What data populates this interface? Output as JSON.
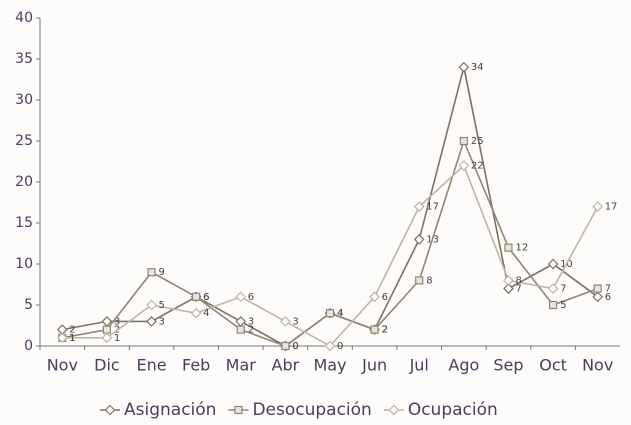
{
  "chart_data": {
    "type": "line",
    "categories": [
      "Nov",
      "Dic",
      "Ene",
      "Feb",
      "Mar",
      "Abr",
      "May",
      "Jun",
      "Jul",
      "Ago",
      "Sep",
      "Oct",
      "Nov"
    ],
    "series": [
      {
        "name": "Asignación",
        "color": "#7a7264",
        "marker": "diamond",
        "values": [
          2,
          3,
          3,
          6,
          3,
          0,
          4,
          2,
          13,
          34,
          7,
          10,
          6
        ]
      },
      {
        "name": "Desocupación",
        "color": "#8e8676",
        "marker": "square",
        "values": [
          1,
          2,
          9,
          6,
          2,
          0,
          4,
          2,
          8,
          25,
          12,
          5,
          7
        ]
      },
      {
        "name": "Ocupación",
        "color": "#bdb5a5",
        "marker": "diamond",
        "values": [
          1,
          1,
          5,
          4,
          6,
          3,
          0,
          6,
          17,
          22,
          8,
          7,
          17
        ]
      }
    ],
    "ylim": [
      0,
      40
    ],
    "yticks": [
      0,
      5,
      10,
      15,
      20,
      25,
      30,
      35,
      40
    ],
    "grid": false,
    "legend": "bottom"
  }
}
